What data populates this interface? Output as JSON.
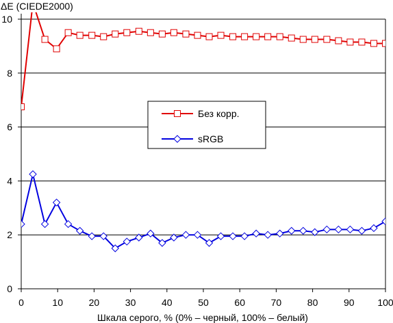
{
  "chart_data": {
    "type": "line",
    "ylabel": "ΔE (CIEDE2000)",
    "xlabel": "Шкала серого, % (0% – черный, 100% – белый)",
    "xlim": [
      0,
      100
    ],
    "ylim": [
      0,
      10
    ],
    "x_ticks": [
      0,
      10,
      20,
      30,
      40,
      50,
      60,
      70,
      80,
      90,
      100
    ],
    "y_ticks": [
      0,
      2,
      4,
      6,
      8,
      10
    ],
    "grid": "horizontal",
    "legend_position": "center",
    "x": [
      0,
      3.2,
      6.5,
      9.7,
      12.9,
      16.1,
      19.4,
      22.6,
      25.8,
      29.0,
      32.3,
      35.5,
      38.7,
      41.9,
      45.2,
      48.4,
      51.6,
      54.8,
      58.1,
      61.3,
      64.5,
      67.7,
      71.0,
      74.2,
      77.4,
      80.6,
      83.9,
      87.1,
      90.3,
      93.5,
      96.8,
      100
    ],
    "series": [
      {
        "name": "Без корр.",
        "color": "#e00000",
        "marker": "square",
        "values": [
          6.75,
          10.6,
          9.25,
          8.9,
          9.5,
          9.4,
          9.4,
          9.35,
          9.45,
          9.5,
          9.55,
          9.5,
          9.45,
          9.5,
          9.45,
          9.4,
          9.35,
          9.4,
          9.35,
          9.35,
          9.35,
          9.35,
          9.35,
          9.3,
          9.25,
          9.25,
          9.25,
          9.2,
          9.15,
          9.15,
          9.1,
          9.1
        ]
      },
      {
        "name": "sRGB",
        "color": "#0000e0",
        "marker": "diamond",
        "values": [
          2.4,
          4.25,
          2.4,
          3.2,
          2.4,
          2.15,
          1.95,
          1.95,
          1.5,
          1.75,
          1.9,
          2.05,
          1.7,
          1.9,
          2.0,
          2.0,
          1.7,
          1.95,
          1.95,
          1.95,
          2.05,
          2.0,
          2.05,
          2.15,
          2.15,
          2.1,
          2.2,
          2.2,
          2.2,
          2.15,
          2.25,
          2.5
        ]
      }
    ]
  }
}
